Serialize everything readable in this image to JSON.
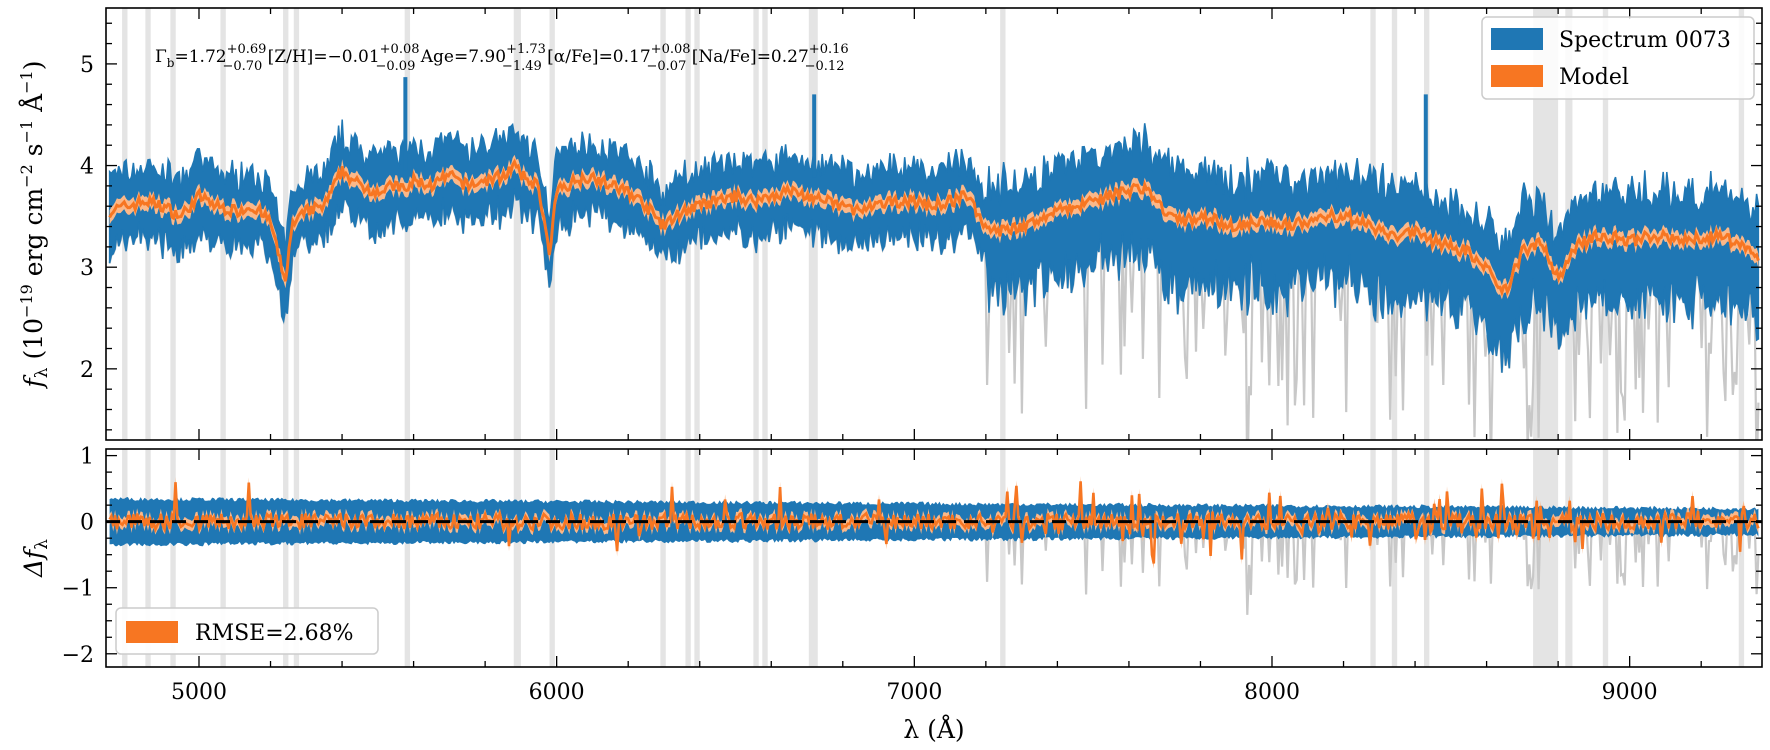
{
  "chart_data": [
    {
      "type": "line",
      "panel": "spectrum",
      "xlabel": "λ (Å)",
      "ylabel": "f_λ (10^−19 erg cm^−2 s^−1 Å^−1)",
      "xlim": [
        4740,
        9370
      ],
      "ylim": [
        1.3,
        5.55
      ],
      "xticks": [
        5000,
        6000,
        7000,
        8000,
        9000
      ],
      "yticks": [
        2,
        3,
        4,
        5
      ],
      "legend_position": "top-right",
      "legend": [
        "Spectrum 0073",
        "Model"
      ],
      "annotation": "Γb=1.72 (+0.69/−0.70) [Z/H]=−0.01 (+0.08/−0.09) Age=7.90 (+1.73/−1.49) [α/Fe]=0.17 (+0.08/−0.07) [Na/Fe]=0.27 (+0.16/−0.12)",
      "series": [
        {
          "name": "Model",
          "color": "#f77622",
          "x": [
            4750,
            4800,
            4850,
            4900,
            4950,
            5000,
            5050,
            5100,
            5150,
            5200,
            5240,
            5260,
            5300,
            5350,
            5400,
            5450,
            5500,
            5550,
            5580,
            5600,
            5650,
            5700,
            5750,
            5800,
            5850,
            5880,
            5900,
            5950,
            5980,
            6000,
            6050,
            6100,
            6150,
            6200,
            6250,
            6300,
            6350,
            6400,
            6450,
            6500,
            6550,
            6600,
            6650,
            6700,
            6750,
            6800,
            6850,
            6900,
            6950,
            7000,
            7050,
            7100,
            7150,
            7200,
            7250,
            7300,
            7350,
            7400,
            7450,
            7500,
            7550,
            7600,
            7650,
            7700,
            7750,
            7800,
            7850,
            7900,
            7950,
            8000,
            8050,
            8100,
            8150,
            8200,
            8250,
            8300,
            8350,
            8400,
            8450,
            8500,
            8550,
            8600,
            8650,
            8700,
            8750,
            8800,
            8850,
            8900,
            8950,
            9000,
            9050,
            9100,
            9150,
            9200,
            9250,
            9300,
            9350
          ],
          "y": [
            3.55,
            3.6,
            3.65,
            3.6,
            3.5,
            3.7,
            3.6,
            3.55,
            3.6,
            3.45,
            2.85,
            3.4,
            3.55,
            3.6,
            3.95,
            3.8,
            3.75,
            3.8,
            3.75,
            3.85,
            3.8,
            3.9,
            3.8,
            3.85,
            3.9,
            4.0,
            3.9,
            3.8,
            3.1,
            3.75,
            3.85,
            3.9,
            3.8,
            3.75,
            3.6,
            3.4,
            3.55,
            3.6,
            3.65,
            3.7,
            3.65,
            3.7,
            3.75,
            3.7,
            3.65,
            3.6,
            3.55,
            3.6,
            3.65,
            3.65,
            3.6,
            3.65,
            3.7,
            3.4,
            3.35,
            3.4,
            3.45,
            3.55,
            3.6,
            3.65,
            3.7,
            3.75,
            3.8,
            3.55,
            3.45,
            3.5,
            3.45,
            3.4,
            3.45,
            3.45,
            3.4,
            3.45,
            3.5,
            3.5,
            3.45,
            3.35,
            3.3,
            3.35,
            3.25,
            3.2,
            3.15,
            3.0,
            2.75,
            3.15,
            3.25,
            2.9,
            3.2,
            3.3,
            3.3,
            3.25,
            3.3,
            3.3,
            3.25,
            3.3,
            3.3,
            3.25,
            3.1
          ]
        },
        {
          "name": "Spectrum 0073",
          "color": "#1f77b4",
          "description_of_band": "Observed spectrum shown as band around model"
        }
      ],
      "masked_regions": [
        [
          4785,
          4800
        ],
        [
          4850,
          4865
        ],
        [
          4920,
          4935
        ],
        [
          5060,
          5075
        ],
        [
          5235,
          5250
        ],
        [
          5265,
          5280
        ],
        [
          5575,
          5590
        ],
        [
          5880,
          5900
        ],
        [
          5980,
          5995
        ],
        [
          6290,
          6305
        ],
        [
          6360,
          6375
        ],
        [
          6385,
          6400
        ],
        [
          6550,
          6565
        ],
        [
          6575,
          6590
        ],
        [
          6705,
          6730
        ],
        [
          7240,
          7255
        ],
        [
          8275,
          8290
        ],
        [
          8335,
          8350
        ],
        [
          8425,
          8440
        ],
        [
          8730,
          8800
        ],
        [
          8820,
          8840
        ],
        [
          8925,
          8940
        ],
        [
          9305,
          9320
        ]
      ],
      "peaks": [
        {
          "x": 5577,
          "y": 4.87
        },
        {
          "x": 6720,
          "y": 4.7
        },
        {
          "x": 8430,
          "y": 4.7
        }
      ]
    },
    {
      "type": "line",
      "panel": "residual",
      "xlabel": "λ (Å)",
      "ylabel": "Δf_λ",
      "xlim": [
        4740,
        9370
      ],
      "ylim": [
        -2.2,
        1.1
      ],
      "xticks": [
        5000,
        6000,
        7000,
        8000,
        9000
      ],
      "yticks": [
        -2,
        -1,
        0,
        1
      ],
      "zero_line": 0,
      "legend_position": "bottom-left",
      "legend": [
        "RMSE=2.68%"
      ],
      "band_halfwidth_start": 0.35,
      "band_halfwidth_end": 0.2
    }
  ],
  "colors": {
    "spectrum": "#1f77b4",
    "model": "#f77622",
    "model_band": "#fbb889",
    "masked": "#e4e4e4",
    "grey_spikes": "#c8c8c8"
  },
  "text": {
    "annotation": {
      "gamma": "Γ",
      "gamma_sub": "b",
      "gamma_val": "=1.72",
      "gamma_up": "+0.69",
      "gamma_dn": "−0.70",
      "zh": " [Z/H]=−0.01",
      "zh_up": "+0.08",
      "zh_dn": "−0.09",
      "age": " Age=7.90",
      "age_up": "+1.73",
      "age_dn": "−1.49",
      "afe": " [α/Fe]=0.17",
      "afe_up": "+0.08",
      "afe_dn": "−0.07",
      "nafe": " [Na/Fe]=0.27",
      "nafe_up": "+0.16",
      "nafe_dn": "−0.12"
    },
    "legend_top": [
      "Spectrum 0073",
      "Model"
    ],
    "legend_bottom": "RMSE=2.68%",
    "ylabel_top": {
      "f": "f",
      "lambda": "λ",
      "open": " (10",
      "exp1": "−19",
      "erg": " erg cm",
      "exp2": "−2",
      "s": " s",
      "exp3": "−1",
      "A": " Å",
      "exp4": "−1",
      "close": ")"
    },
    "ylabel_bottom": {
      "delta": "Δf",
      "lambda": "λ"
    },
    "xlabel": "λ (Å)"
  }
}
